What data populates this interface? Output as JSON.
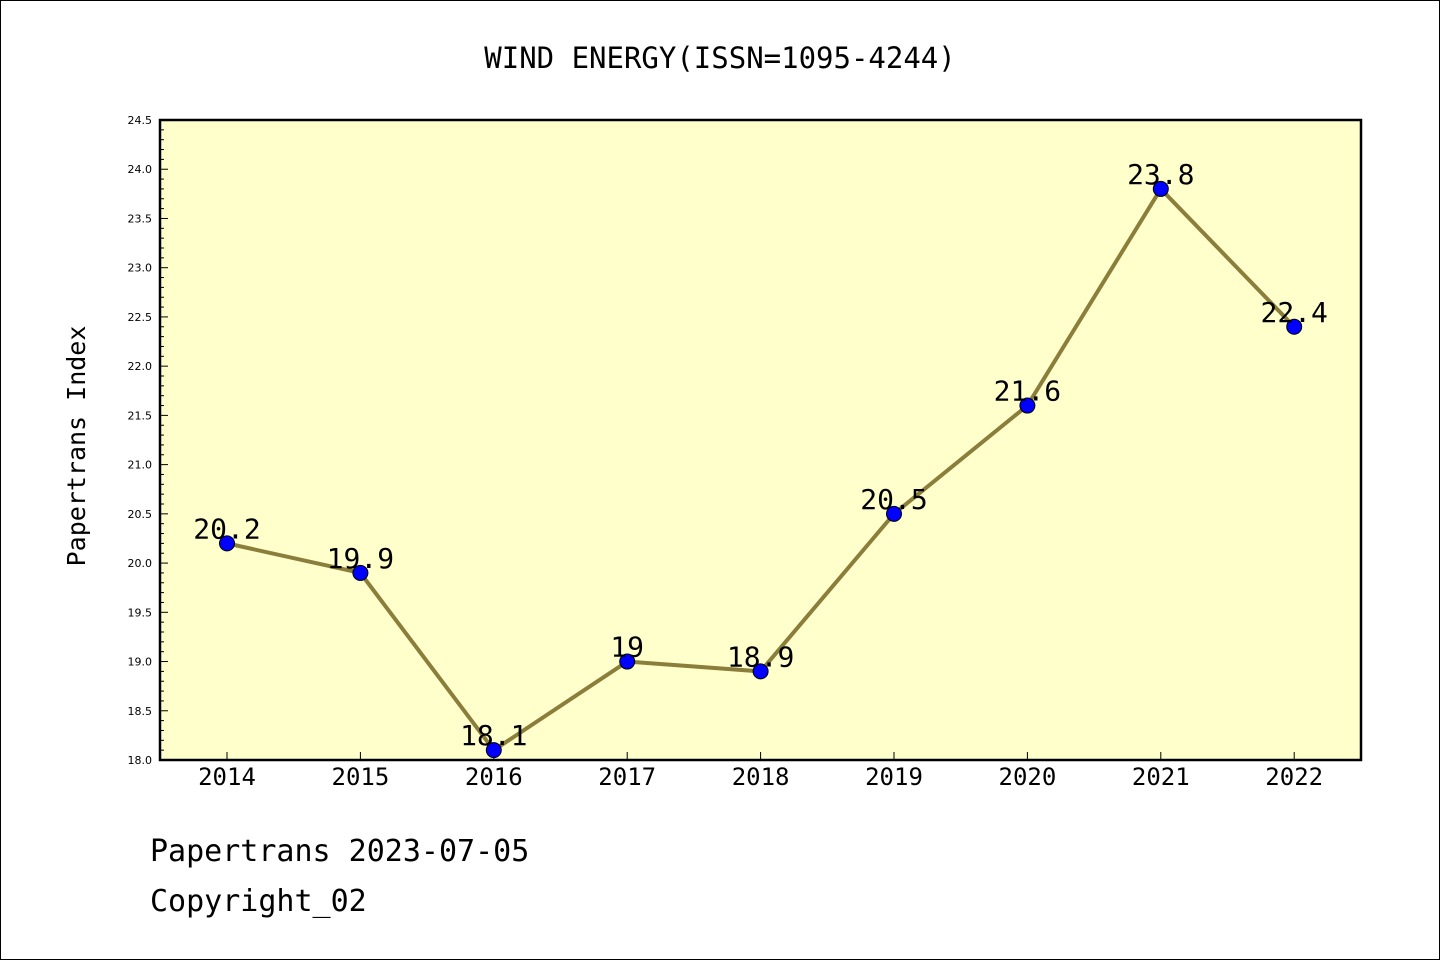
{
  "chart_data": {
    "type": "line",
    "title": "WIND ENERGY(ISSN=1095-4244)",
    "xlabel": "",
    "ylabel": "Papertrans Index",
    "categories": [
      "2014",
      "2015",
      "2016",
      "2017",
      "2018",
      "2019",
      "2020",
      "2021",
      "2022"
    ],
    "series": [
      {
        "values": [
          20.2,
          19.9,
          18.1,
          19.0,
          18.9,
          20.5,
          21.6,
          23.8,
          22.4
        ]
      }
    ],
    "data_labels": [
      "20.2",
      "19.9",
      "18.1",
      "19",
      "18.9",
      "20.5",
      "21.6",
      "23.8",
      "22.4"
    ],
    "ylim": [
      18.0,
      24.5
    ],
    "yticks": [
      "18.0",
      "18.5",
      "19.0",
      "19.5",
      "20.0",
      "20.5",
      "21.0",
      "21.5",
      "22.0",
      "22.5",
      "23.0",
      "23.5",
      "24.0",
      "24.5"
    ],
    "grid": false,
    "legend": "none",
    "colors": {
      "plot_background": "#ffffcc",
      "line": "#8b7d3a",
      "marker": "#0000ff"
    }
  },
  "footer": {
    "line1": "Papertrans 2023-07-05",
    "line2": "Copyright_02"
  }
}
